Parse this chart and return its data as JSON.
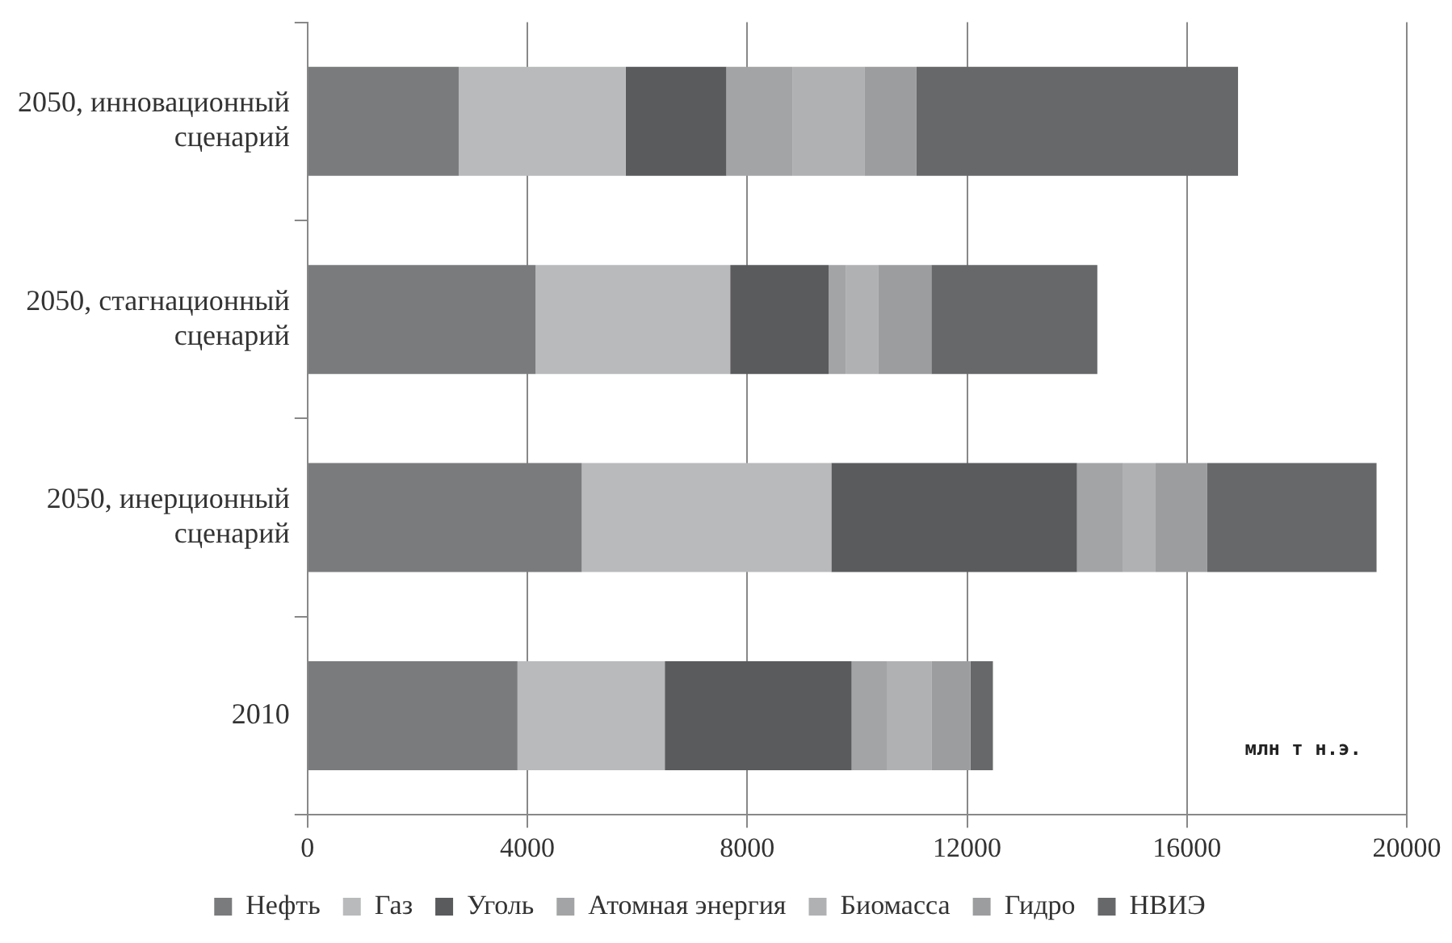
{
  "chart_data": {
    "type": "bar",
    "orientation": "horizontal",
    "stacked": true,
    "categories": [
      "2050, инновационный сценарий",
      "2050, стагнационный сценарий",
      "2050, инерционный сценарий",
      "2010"
    ],
    "series": [
      {
        "name": "Нефть",
        "color": "#7a7b7d",
        "values": [
          2750,
          4150,
          4990,
          3820
        ]
      },
      {
        "name": "Газ",
        "color": "#b9babc",
        "values": [
          3040,
          3540,
          4540,
          2680
        ]
      },
      {
        "name": "Уголь",
        "color": "#5a5b5d",
        "values": [
          1830,
          1790,
          4470,
          3400
        ]
      },
      {
        "name": "Атомная энергия",
        "color": "#a3a4a6",
        "values": [
          1200,
          310,
          840,
          650
        ]
      },
      {
        "name": "Биомасса",
        "color": "#b0b1b3",
        "values": [
          1310,
          590,
          590,
          800
        ]
      },
      {
        "name": "Гидро",
        "color": "#9c9d9f",
        "values": [
          950,
          970,
          940,
          710
        ]
      },
      {
        "name": "НВИЭ",
        "color": "#67686a",
        "values": [
          5850,
          3020,
          3080,
          410
        ]
      }
    ],
    "xlim": [
      0,
      20000
    ],
    "xticks": [
      0,
      4000,
      8000,
      12000,
      16000,
      20000
    ],
    "grid": "x",
    "legend": "bottom",
    "annotations": [
      "млн т н.э."
    ]
  }
}
